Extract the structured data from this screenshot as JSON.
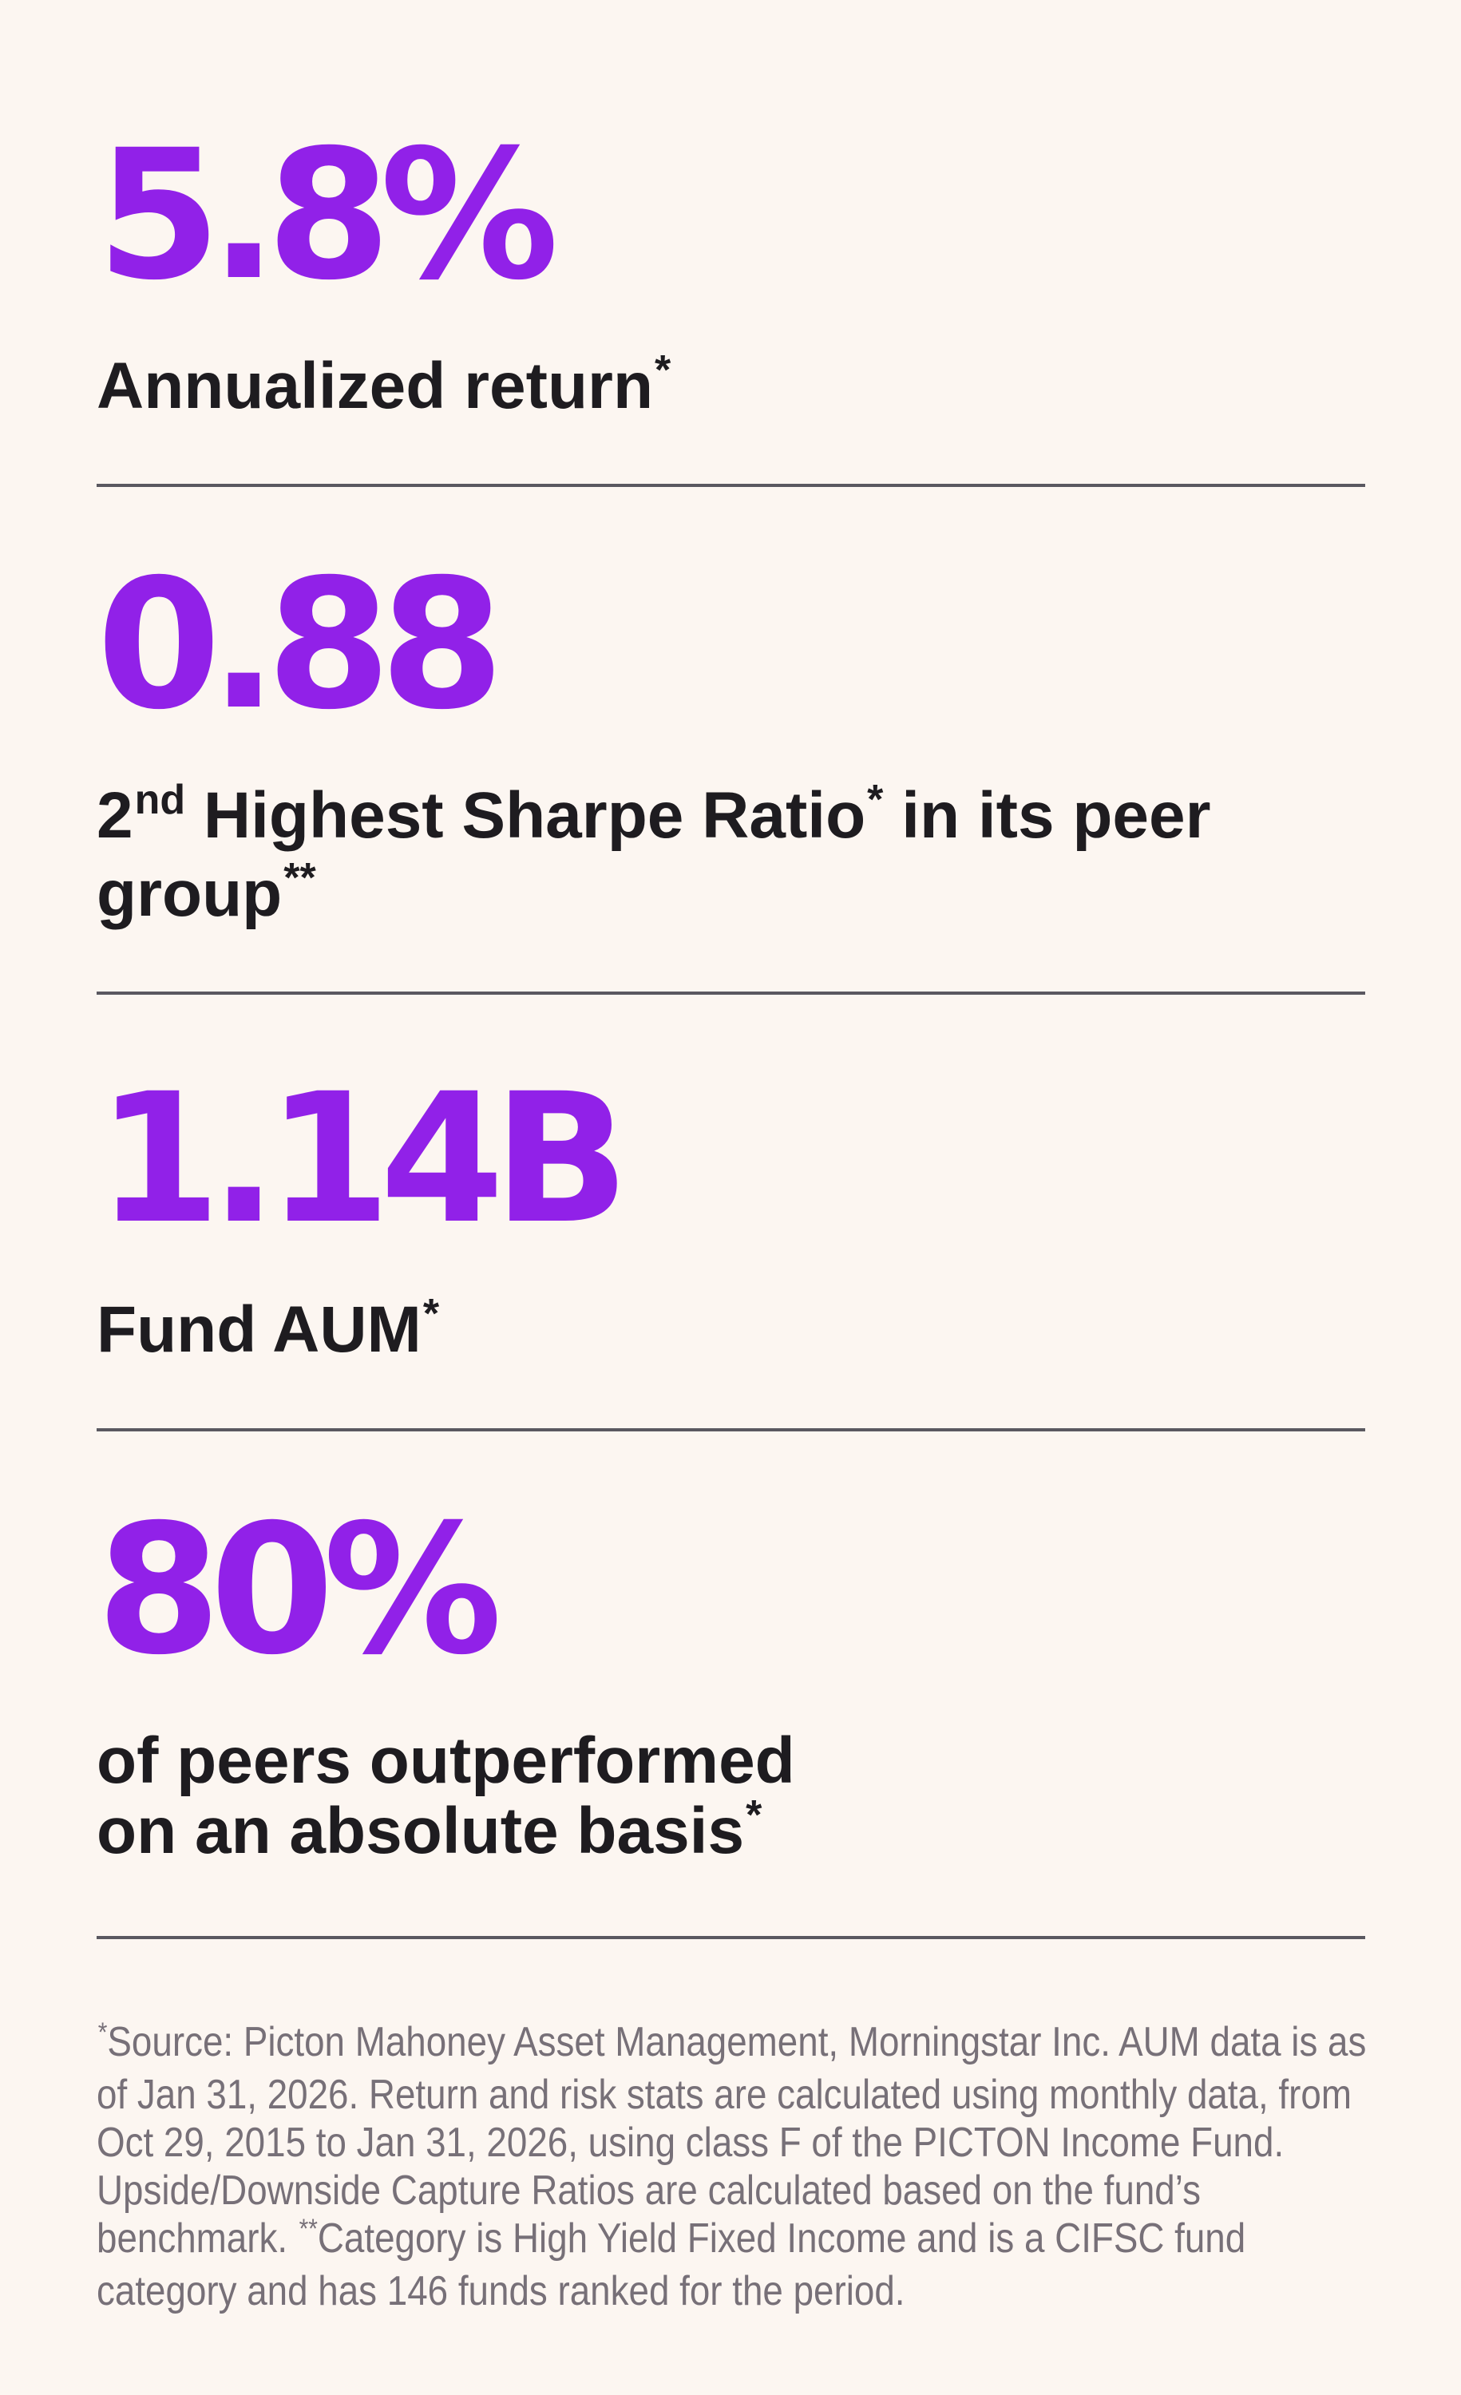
{
  "stats": [
    {
      "value": "5.8%",
      "label": "Annualized return",
      "label_mark": "*"
    },
    {
      "value": "0.88",
      "label_ordinal": "2",
      "label_ordinal_suffix": "nd",
      "label_part1": " Highest Sharpe Ratio",
      "label_mark1": "*",
      "label_part2": " in its peer group",
      "label_mark2": "**"
    },
    {
      "value": "1.14B",
      "label": "Fund AUM",
      "label_mark": "*"
    },
    {
      "value": "80%",
      "label_line1": "of peers outperformed",
      "label_line2": "on an absolute basis",
      "label_mark": "*"
    }
  ],
  "footnote": {
    "mark1": "*",
    "text1": "Source: Picton Mahoney Asset Management, Morningstar Inc. AUM data is as of Jan 31, 2026. Return and risk stats are calculated using monthly data, from Oct 29, 2015 to Jan 31, 2026, using class F of the PICTON Income Fund. Upside/Downside Capture Ratios are calculated based on the fund’s benchmark. ",
    "mark2": "**",
    "text2": "Category is High Yield Fixed Income and is a CIFSC fund category and has 146 funds ranked for the period."
  },
  "colors": {
    "background": "#fcf6f1",
    "accent": "#9121e8",
    "text": "#1e1c20",
    "divider": "#5a5860",
    "footnote": "#777078"
  }
}
